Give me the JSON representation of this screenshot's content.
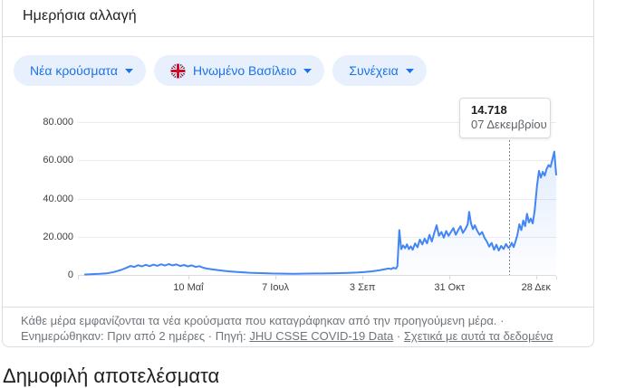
{
  "card": {
    "title": "Ημερήσια αλλαγή",
    "chips": [
      {
        "label": "Νέα κρούσματα"
      },
      {
        "label": "Ηνωμένο Βασίλειο",
        "flag": "uk-flag"
      },
      {
        "label": "Συνέχεια"
      }
    ],
    "tooltip": {
      "value": "14.718",
      "date": "07 Δεκεμβρίου"
    },
    "footer": {
      "text": "Κάθε μέρα εμφανίζονται τα νέα κρούσματα που καταγράφηκαν από την προηγούμενη μέρα. · Ενημερώθηκαν: Πριν από 2 ημέρες · Πηγή: ",
      "source_link": "JHU CSSE COVID-19 Data",
      "sep": " · ",
      "about_link": "Σχετικά με αυτά τα δεδομένα"
    }
  },
  "below_heading": "Δημοφιλή αποτελέσματα",
  "colors": {
    "accent_blue": "#1a73e8",
    "line_blue": "#4285f4",
    "chip_bg": "#e8f0fe",
    "card_border": "#dadce0",
    "text_primary": "#202124",
    "text_secondary": "#5f6368",
    "footer_gray": "#70757a",
    "gridline": "#e9ebee"
  },
  "chart_data": {
    "type": "line",
    "title": "Ημερήσια αλλαγή",
    "series_name": "Νέα κρούσματα — Ηνωμένο Βασίλειο",
    "ylim": [
      0,
      80000
    ],
    "grid": true,
    "y_ticks": [
      {
        "label": "80.000",
        "value": 80000
      },
      {
        "label": "60.000",
        "value": 60000
      },
      {
        "label": "40.000",
        "value": 40000
      },
      {
        "label": "20.000",
        "value": 20000
      },
      {
        "label": "0",
        "value": 0
      }
    ],
    "x_ticks": [
      {
        "label": "10 Μαΐ",
        "pos": 0.231
      },
      {
        "label": "7 Ιουλ",
        "pos": 0.413
      },
      {
        "label": "3 Σεπ",
        "pos": 0.595
      },
      {
        "label": "31 Οκτ",
        "pos": 0.777
      },
      {
        "label": "28 Δεκ",
        "pos": 0.958
      }
    ],
    "edge_ticks": [
      0.0,
      1.0
    ],
    "highlight": {
      "pos": 0.903,
      "value": 14718,
      "value_label": "14.718",
      "date_label": "07 Δεκεμβρίου"
    },
    "points": [
      [
        0.015,
        250
      ],
      [
        0.03,
        420
      ],
      [
        0.045,
        560
      ],
      [
        0.06,
        820
      ],
      [
        0.075,
        1500
      ],
      [
        0.09,
        2600
      ],
      [
        0.1,
        3600
      ],
      [
        0.11,
        4700
      ],
      [
        0.118,
        4200
      ],
      [
        0.126,
        5100
      ],
      [
        0.134,
        4500
      ],
      [
        0.142,
        5300
      ],
      [
        0.15,
        4600
      ],
      [
        0.158,
        5400
      ],
      [
        0.166,
        4800
      ],
      [
        0.174,
        5600
      ],
      [
        0.182,
        4900
      ],
      [
        0.19,
        5700
      ],
      [
        0.198,
        5000
      ],
      [
        0.206,
        5500
      ],
      [
        0.214,
        4700
      ],
      [
        0.222,
        5200
      ],
      [
        0.23,
        4500
      ],
      [
        0.238,
        5000
      ],
      [
        0.246,
        4200
      ],
      [
        0.254,
        4600
      ],
      [
        0.262,
        3800
      ],
      [
        0.27,
        3300
      ],
      [
        0.285,
        2800
      ],
      [
        0.3,
        2300
      ],
      [
        0.315,
        1900
      ],
      [
        0.33,
        1600
      ],
      [
        0.345,
        1350
      ],
      [
        0.36,
        1150
      ],
      [
        0.375,
        1000
      ],
      [
        0.39,
        880
      ],
      [
        0.405,
        780
      ],
      [
        0.42,
        700
      ],
      [
        0.435,
        640
      ],
      [
        0.45,
        620
      ],
      [
        0.465,
        650
      ],
      [
        0.48,
        700
      ],
      [
        0.495,
        740
      ],
      [
        0.51,
        780
      ],
      [
        0.525,
        830
      ],
      [
        0.54,
        900
      ],
      [
        0.555,
        1000
      ],
      [
        0.57,
        1120
      ],
      [
        0.585,
        1300
      ],
      [
        0.6,
        1550
      ],
      [
        0.615,
        1900
      ],
      [
        0.63,
        2400
      ],
      [
        0.64,
        2900
      ],
      [
        0.65,
        3400
      ],
      [
        0.655,
        3100
      ],
      [
        0.66,
        3800
      ],
      [
        0.665,
        3300
      ],
      [
        0.668,
        4600
      ],
      [
        0.672,
        23500
      ],
      [
        0.676,
        13500
      ],
      [
        0.68,
        15500
      ],
      [
        0.684,
        14000
      ],
      [
        0.688,
        16000
      ],
      [
        0.692,
        13500
      ],
      [
        0.696,
        15000
      ],
      [
        0.7,
        13200
      ],
      [
        0.705,
        16500
      ],
      [
        0.71,
        14500
      ],
      [
        0.715,
        18500
      ],
      [
        0.72,
        16000
      ],
      [
        0.725,
        19000
      ],
      [
        0.73,
        16500
      ],
      [
        0.735,
        21000
      ],
      [
        0.74,
        17500
      ],
      [
        0.745,
        22000
      ],
      [
        0.75,
        26000
      ],
      [
        0.755,
        20500
      ],
      [
        0.76,
        22500
      ],
      [
        0.765,
        19500
      ],
      [
        0.77,
        23000
      ],
      [
        0.775,
        20500
      ],
      [
        0.78,
        22500
      ],
      [
        0.785,
        24500
      ],
      [
        0.79,
        21000
      ],
      [
        0.795,
        23500
      ],
      [
        0.8,
        25500
      ],
      [
        0.805,
        22000
      ],
      [
        0.81,
        24000
      ],
      [
        0.815,
        26500
      ],
      [
        0.818,
        33000
      ],
      [
        0.822,
        27000
      ],
      [
        0.826,
        24000
      ],
      [
        0.83,
        26000
      ],
      [
        0.835,
        23000
      ],
      [
        0.84,
        21000
      ],
      [
        0.845,
        22500
      ],
      [
        0.85,
        19500
      ],
      [
        0.855,
        17500
      ],
      [
        0.86,
        14800
      ],
      [
        0.865,
        16800
      ],
      [
        0.87,
        13200
      ],
      [
        0.875,
        15800
      ],
      [
        0.88,
        12800
      ],
      [
        0.885,
        15200
      ],
      [
        0.89,
        13600
      ],
      [
        0.895,
        16200
      ],
      [
        0.9,
        14200
      ],
      [
        0.903,
        14718
      ],
      [
        0.907,
        16800
      ],
      [
        0.911,
        14600
      ],
      [
        0.915,
        17500
      ],
      [
        0.919,
        21000
      ],
      [
        0.923,
        26500
      ],
      [
        0.927,
        23500
      ],
      [
        0.931,
        28500
      ],
      [
        0.935,
        25500
      ],
      [
        0.939,
        32000
      ],
      [
        0.943,
        27500
      ],
      [
        0.947,
        29500
      ],
      [
        0.951,
        27000
      ],
      [
        0.955,
        33500
      ],
      [
        0.96,
        47000
      ],
      [
        0.964,
        54500
      ],
      [
        0.968,
        51000
      ],
      [
        0.972,
        54000
      ],
      [
        0.976,
        52000
      ],
      [
        0.98,
        55500
      ],
      [
        0.984,
        57500
      ],
      [
        0.988,
        56500
      ],
      [
        0.992,
        60500
      ],
      [
        0.996,
        64500
      ],
      [
        1.0,
        52500
      ]
    ]
  }
}
